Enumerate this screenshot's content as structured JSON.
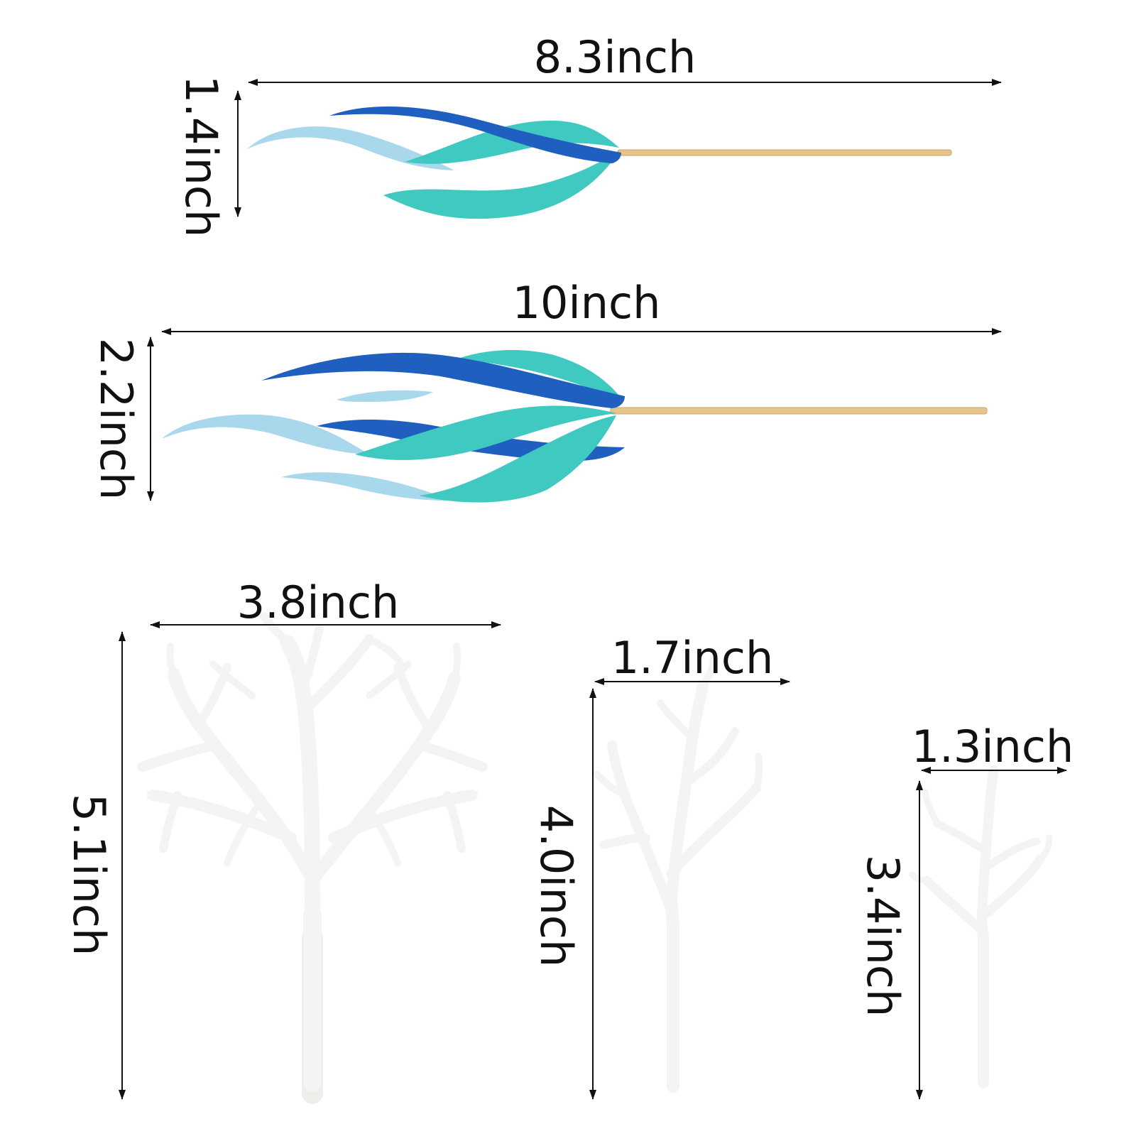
{
  "measurements": {
    "seaweed_small": {
      "width": "8.3inch",
      "height": "1.4inch"
    },
    "seaweed_large": {
      "width": "10inch",
      "height": "2.2inch"
    },
    "coral_large": {
      "width": "3.8inch",
      "height": "5.1inch"
    },
    "coral_medium": {
      "width": "1.7inch",
      "height": "4.0inch"
    },
    "coral_small": {
      "width": "1.3inch",
      "height": "3.4inch"
    }
  },
  "colors": {
    "dark_blue": "#1f5fbf",
    "teal": "#3fc9c0",
    "light_blue": "#a9d7ec",
    "wood_stick": "#e6c48a",
    "coral_white": "#f4f4f2",
    "arrow": "#111111"
  }
}
